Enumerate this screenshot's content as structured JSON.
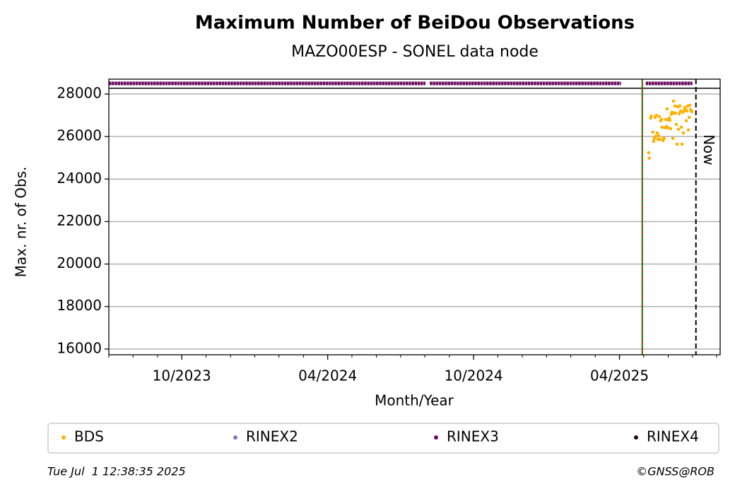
{
  "chart_data": {
    "type": "scatter",
    "title": "Maximum Number of BeiDou Observations",
    "subtitle": "MAZO00ESP - SONEL data node",
    "x_label": "Month/Year",
    "y_label": "Max. nr. of Obs.",
    "xlim": [
      2023.5,
      2025.595
    ],
    "xticks": [
      {
        "value": 2023.75,
        "label": "10/2023"
      },
      {
        "value": 2024.25,
        "label": "04/2024"
      },
      {
        "value": 2024.75,
        "label": "10/2024"
      },
      {
        "value": 2025.25,
        "label": "04/2025"
      }
    ],
    "xminorticks": [
      2023.5,
      2023.583,
      2023.667,
      2023.833,
      2023.917,
      2024.0,
      2024.083,
      2024.167,
      2024.333,
      2024.417,
      2024.5,
      2024.583,
      2024.667,
      2024.833,
      2024.917,
      2025.0,
      2025.083,
      2025.167,
      2025.333,
      2025.417,
      2025.5,
      2025.583
    ],
    "ylim": [
      15730,
      28700
    ],
    "yticks": [
      16000,
      18000,
      20000,
      22000,
      24000,
      26000,
      28000
    ],
    "grid": true,
    "hlines": [
      {
        "value": 28270,
        "color": "#000000"
      }
    ],
    "vlines": [
      {
        "x": 2025.328,
        "color": "#008000",
        "dash_color": "#ff0000"
      },
      {
        "x": 2025.512,
        "color": "#000000",
        "label": "Now"
      }
    ],
    "series": [
      {
        "name": "BDS",
        "color": "#ffb000",
        "style": "points",
        "x": [
          2025.35,
          2025.352,
          2025.357,
          2025.359,
          2025.364,
          2025.367,
          2025.369,
          2025.372,
          2025.374,
          2025.376,
          2025.379,
          2025.381,
          2025.384,
          2025.386,
          2025.389,
          2025.391,
          2025.394,
          2025.396,
          2025.399,
          2025.401,
          2025.403,
          2025.406,
          2025.408,
          2025.411,
          2025.413,
          2025.416,
          2025.418,
          2025.42,
          2025.423,
          2025.425,
          2025.428,
          2025.43,
          2025.433,
          2025.435,
          2025.438,
          2025.44,
          2025.442,
          2025.445,
          2025.447,
          2025.45,
          2025.452,
          2025.455,
          2025.457,
          2025.459,
          2025.462,
          2025.464,
          2025.467,
          2025.469,
          2025.472,
          2025.474,
          2025.477,
          2025.479,
          2025.481,
          2025.484,
          2025.486,
          2025.489,
          2025.491,
          2025.494,
          2025.496,
          2025.498
        ],
        "values": [
          25240,
          24980,
          26870,
          26970,
          26210,
          25770,
          25910,
          26900,
          26010,
          27000,
          26170,
          25870,
          26040,
          26940,
          25870,
          26740,
          26800,
          26440,
          25810,
          25940,
          25910,
          26410,
          26800,
          26470,
          27300,
          26410,
          26770,
          26870,
          26770,
          26370,
          27040,
          27140,
          25910,
          27670,
          27100,
          27440,
          27100,
          26570,
          25640,
          27400,
          26340,
          27070,
          27440,
          27200,
          26440,
          25640,
          27140,
          26170,
          27240,
          27370,
          27270,
          26740,
          27200,
          27440,
          26310,
          26900,
          27470,
          27270,
          27200,
          27170
        ]
      },
      {
        "name": "RINEX2",
        "color": "#7b7bbb",
        "style": "points",
        "x": [],
        "values": []
      },
      {
        "name": "RINEX3",
        "color": "#6a0a5e",
        "style": "line",
        "x": [
          2023.5,
          2024.585,
          null,
          2024.6,
          2025.255,
          null,
          2025.34,
          2025.5
        ],
        "values": [
          28500,
          28500,
          null,
          28500,
          28500,
          null,
          28500,
          28500
        ]
      },
      {
        "name": "RINEX4",
        "color": "#200818",
        "style": "points",
        "x": [],
        "values": []
      }
    ]
  },
  "footer": {
    "left": "Tue Jul  1 12:38:35 2025",
    "right": "©GNSS@ROB"
  }
}
